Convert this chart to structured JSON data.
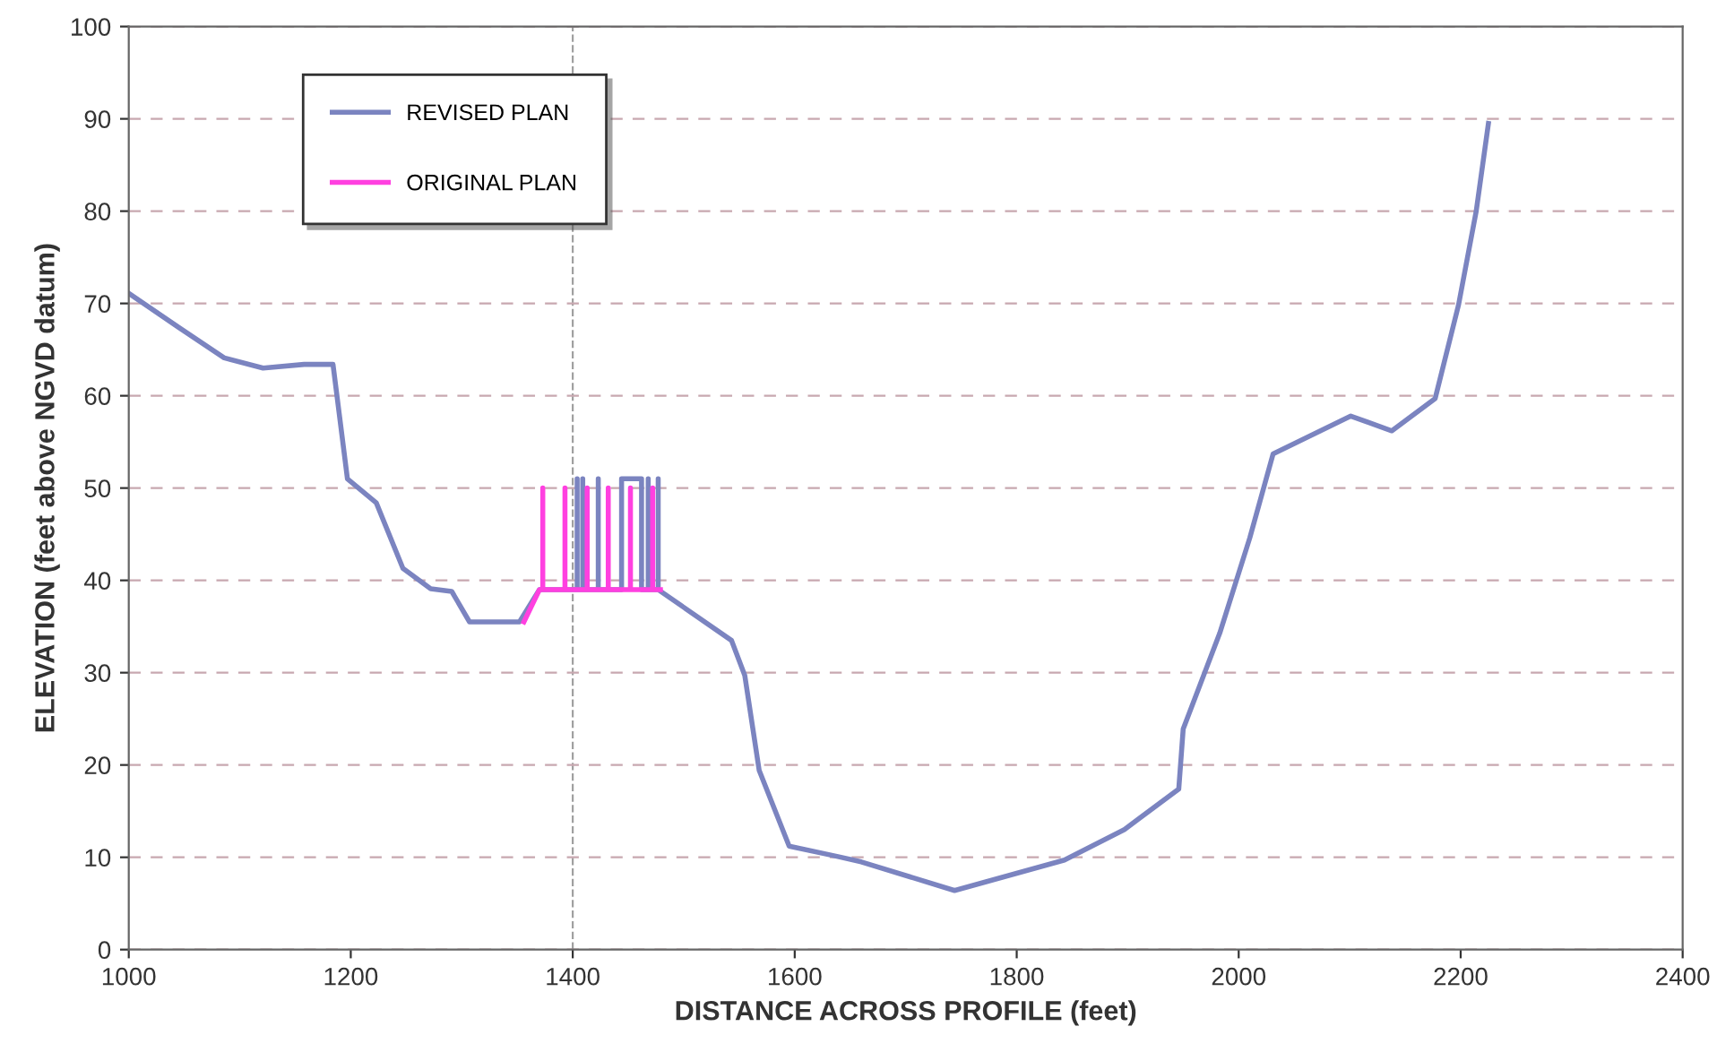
{
  "chart_data": {
    "type": "line",
    "xlabel": "DISTANCE ACROSS PROFILE (feet)",
    "ylabel": "ELEVATION (feet above NGVD datum)",
    "xlim": [
      1000,
      2400
    ],
    "xticks": [
      1000,
      1200,
      1400,
      1600,
      1800,
      2000,
      2200,
      2400
    ],
    "ylim": [
      0,
      100
    ],
    "yticks": [
      0,
      10,
      20,
      30,
      40,
      50,
      60,
      70,
      80,
      90,
      100
    ],
    "grid": "y",
    "legend": "top left",
    "line_style": "solid",
    "marker": "none",
    "ref_lines": [
      {
        "axis": "x",
        "value": 1400,
        "color": "#a0a0a0",
        "line_style": "dashed"
      }
    ],
    "series": [
      {
        "name": "REVISED PLAN",
        "color": "#7b84c0",
        "x": [
          1000,
          1045,
          1086,
          1121,
          1158,
          1184,
          1197,
          1223,
          1247,
          1272,
          1291,
          1307,
          1352,
          1370,
          1404,
          1404,
          1404,
          1409,
          1409,
          1409,
          1423,
          1423,
          1423,
          1444,
          1444,
          1462,
          1462,
          1468,
          1468,
          1468,
          1477,
          1477,
          1477,
          1543,
          1555,
          1568,
          1595,
          1638,
          1660,
          1744,
          1843,
          1897,
          1946,
          1950,
          1983,
          2010,
          2031,
          2101,
          2138,
          2177,
          2198,
          2214,
          2225
        ],
        "values": [
          71.1,
          67.4,
          64.1,
          63,
          63.4,
          63.4,
          51,
          48.4,
          41.3,
          39.1,
          38.8,
          35.5,
          35.5,
          39,
          39,
          51,
          39,
          39,
          51,
          39,
          39,
          51,
          39,
          39,
          51,
          51,
          39,
          39,
          51,
          39,
          39,
          51,
          39,
          33.5,
          29.7,
          19.4,
          11.2,
          10.1,
          9.5,
          6.4,
          9.7,
          13,
          17.4,
          23.9,
          34.3,
          44.6,
          53.7,
          57.8,
          56.2,
          59.7,
          69.8,
          80,
          89.5
        ]
      },
      {
        "name": "ORIGINAL PLAN",
        "color": "#ff40e0",
        "x": [
          1356,
          1370,
          1373,
          1373,
          1373,
          1393,
          1393,
          1393,
          1413,
          1413,
          1413,
          1432,
          1432,
          1432,
          1452,
          1452,
          1452,
          1472,
          1472,
          1472,
          1479
        ],
        "values": [
          35.5,
          39,
          39,
          50,
          39,
          39,
          50,
          39,
          39,
          50,
          39,
          39,
          50,
          39,
          39,
          50,
          39,
          39,
          50,
          39,
          39
        ]
      }
    ]
  }
}
